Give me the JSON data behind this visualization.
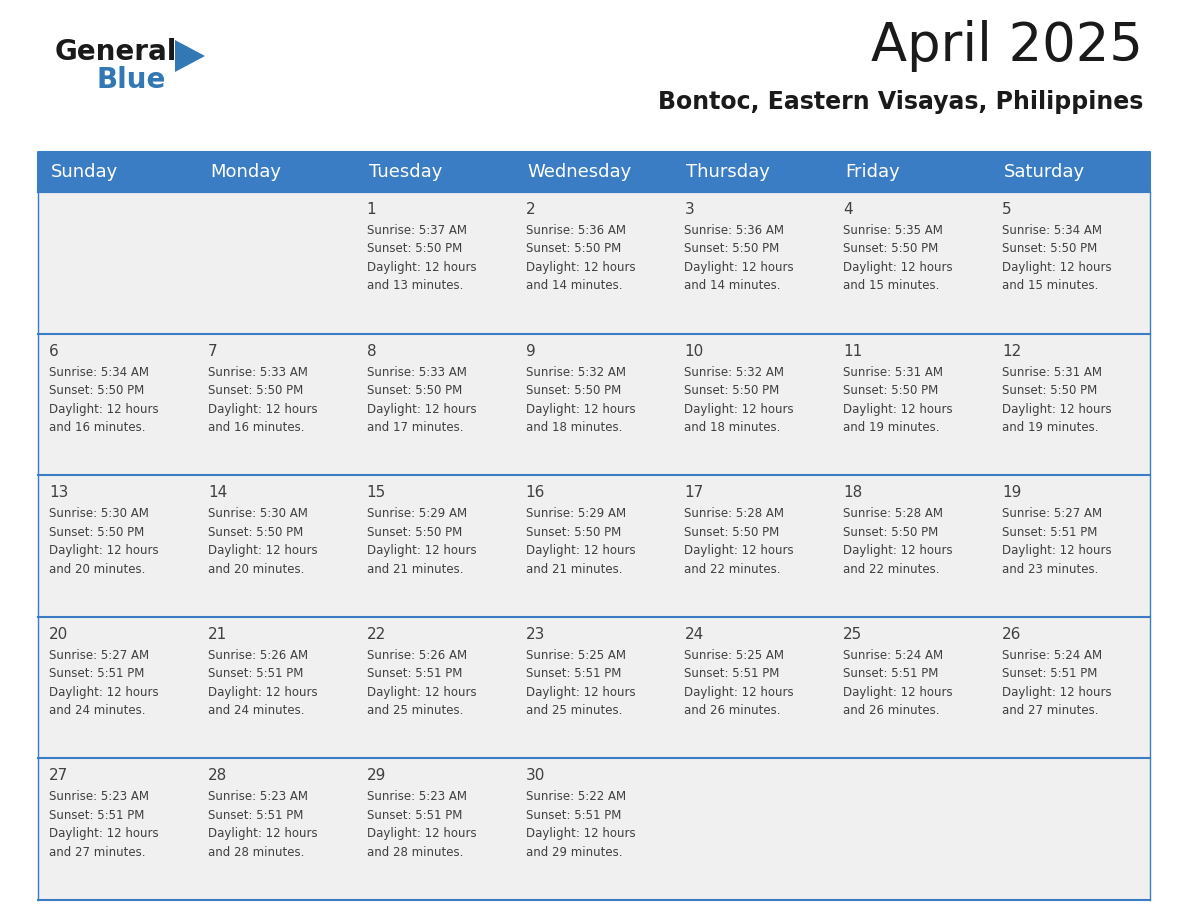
{
  "title": "April 2025",
  "subtitle": "Bontoc, Eastern Visayas, Philippines",
  "header_color": "#3B7DC4",
  "header_text_color": "#FFFFFF",
  "bg_color": "#FFFFFF",
  "cell_bg": "#F0F0F0",
  "border_color": "#3B7DC4",
  "text_color": "#404040",
  "days_of_week": [
    "Sunday",
    "Monday",
    "Tuesday",
    "Wednesday",
    "Thursday",
    "Friday",
    "Saturday"
  ],
  "weeks": [
    [
      {
        "day": "",
        "sunrise": "",
        "sunset": "",
        "daylight": ""
      },
      {
        "day": "",
        "sunrise": "",
        "sunset": "",
        "daylight": ""
      },
      {
        "day": "1",
        "sunrise": "5:37 AM",
        "sunset": "5:50 PM",
        "daylight": "12 hours\nand 13 minutes."
      },
      {
        "day": "2",
        "sunrise": "5:36 AM",
        "sunset": "5:50 PM",
        "daylight": "12 hours\nand 14 minutes."
      },
      {
        "day": "3",
        "sunrise": "5:36 AM",
        "sunset": "5:50 PM",
        "daylight": "12 hours\nand 14 minutes."
      },
      {
        "day": "4",
        "sunrise": "5:35 AM",
        "sunset": "5:50 PM",
        "daylight": "12 hours\nand 15 minutes."
      },
      {
        "day": "5",
        "sunrise": "5:34 AM",
        "sunset": "5:50 PM",
        "daylight": "12 hours\nand 15 minutes."
      }
    ],
    [
      {
        "day": "6",
        "sunrise": "5:34 AM",
        "sunset": "5:50 PM",
        "daylight": "12 hours\nand 16 minutes."
      },
      {
        "day": "7",
        "sunrise": "5:33 AM",
        "sunset": "5:50 PM",
        "daylight": "12 hours\nand 16 minutes."
      },
      {
        "day": "8",
        "sunrise": "5:33 AM",
        "sunset": "5:50 PM",
        "daylight": "12 hours\nand 17 minutes."
      },
      {
        "day": "9",
        "sunrise": "5:32 AM",
        "sunset": "5:50 PM",
        "daylight": "12 hours\nand 18 minutes."
      },
      {
        "day": "10",
        "sunrise": "5:32 AM",
        "sunset": "5:50 PM",
        "daylight": "12 hours\nand 18 minutes."
      },
      {
        "day": "11",
        "sunrise": "5:31 AM",
        "sunset": "5:50 PM",
        "daylight": "12 hours\nand 19 minutes."
      },
      {
        "day": "12",
        "sunrise": "5:31 AM",
        "sunset": "5:50 PM",
        "daylight": "12 hours\nand 19 minutes."
      }
    ],
    [
      {
        "day": "13",
        "sunrise": "5:30 AM",
        "sunset": "5:50 PM",
        "daylight": "12 hours\nand 20 minutes."
      },
      {
        "day": "14",
        "sunrise": "5:30 AM",
        "sunset": "5:50 PM",
        "daylight": "12 hours\nand 20 minutes."
      },
      {
        "day": "15",
        "sunrise": "5:29 AM",
        "sunset": "5:50 PM",
        "daylight": "12 hours\nand 21 minutes."
      },
      {
        "day": "16",
        "sunrise": "5:29 AM",
        "sunset": "5:50 PM",
        "daylight": "12 hours\nand 21 minutes."
      },
      {
        "day": "17",
        "sunrise": "5:28 AM",
        "sunset": "5:50 PM",
        "daylight": "12 hours\nand 22 minutes."
      },
      {
        "day": "18",
        "sunrise": "5:28 AM",
        "sunset": "5:50 PM",
        "daylight": "12 hours\nand 22 minutes."
      },
      {
        "day": "19",
        "sunrise": "5:27 AM",
        "sunset": "5:51 PM",
        "daylight": "12 hours\nand 23 minutes."
      }
    ],
    [
      {
        "day": "20",
        "sunrise": "5:27 AM",
        "sunset": "5:51 PM",
        "daylight": "12 hours\nand 24 minutes."
      },
      {
        "day": "21",
        "sunrise": "5:26 AM",
        "sunset": "5:51 PM",
        "daylight": "12 hours\nand 24 minutes."
      },
      {
        "day": "22",
        "sunrise": "5:26 AM",
        "sunset": "5:51 PM",
        "daylight": "12 hours\nand 25 minutes."
      },
      {
        "day": "23",
        "sunrise": "5:25 AM",
        "sunset": "5:51 PM",
        "daylight": "12 hours\nand 25 minutes."
      },
      {
        "day": "24",
        "sunrise": "5:25 AM",
        "sunset": "5:51 PM",
        "daylight": "12 hours\nand 26 minutes."
      },
      {
        "day": "25",
        "sunrise": "5:24 AM",
        "sunset": "5:51 PM",
        "daylight": "12 hours\nand 26 minutes."
      },
      {
        "day": "26",
        "sunrise": "5:24 AM",
        "sunset": "5:51 PM",
        "daylight": "12 hours\nand 27 minutes."
      }
    ],
    [
      {
        "day": "27",
        "sunrise": "5:23 AM",
        "sunset": "5:51 PM",
        "daylight": "12 hours\nand 27 minutes."
      },
      {
        "day": "28",
        "sunrise": "5:23 AM",
        "sunset": "5:51 PM",
        "daylight": "12 hours\nand 28 minutes."
      },
      {
        "day": "29",
        "sunrise": "5:23 AM",
        "sunset": "5:51 PM",
        "daylight": "12 hours\nand 28 minutes."
      },
      {
        "day": "30",
        "sunrise": "5:22 AM",
        "sunset": "5:51 PM",
        "daylight": "12 hours\nand 29 minutes."
      },
      {
        "day": "",
        "sunrise": "",
        "sunset": "",
        "daylight": ""
      },
      {
        "day": "",
        "sunrise": "",
        "sunset": "",
        "daylight": ""
      },
      {
        "day": "",
        "sunrise": "",
        "sunset": "",
        "daylight": ""
      }
    ]
  ],
  "logo_general_color": "#1a1a1a",
  "logo_blue_color": "#3278b4",
  "title_font_size": 38,
  "subtitle_font_size": 17,
  "day_header_font_size": 13,
  "day_num_font_size": 11,
  "cell_text_font_size": 8.5
}
